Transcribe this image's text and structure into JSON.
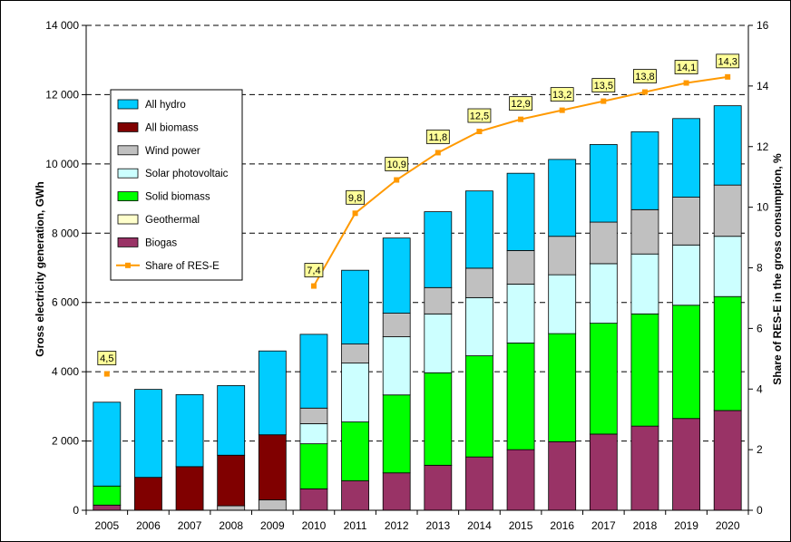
{
  "chart_data": {
    "type": "bar",
    "stacked": true,
    "categories": [
      "2005",
      "2006",
      "2007",
      "2008",
      "2009",
      "2010",
      "2011",
      "2012",
      "2013",
      "2014",
      "2015",
      "2016",
      "2017",
      "2018",
      "2019",
      "2020"
    ],
    "ylabel": "Gross electricity generation, GWh",
    "y2label": "Share of RES-E in the gross consumption, %",
    "ylim": [
      0,
      14000
    ],
    "y2lim": [
      0,
      16
    ],
    "yticks": [
      0,
      2000,
      4000,
      6000,
      8000,
      10000,
      12000,
      14000
    ],
    "yticklabels": [
      "0",
      "2 000",
      "4 000",
      "6 000",
      "8 000",
      "10 000",
      "12 000",
      "14 000"
    ],
    "y2ticks": [
      0,
      2,
      4,
      6,
      8,
      10,
      12,
      14,
      16
    ],
    "y2ticklabels": [
      "0",
      "2",
      "4",
      "6",
      "8",
      "10",
      "12",
      "14",
      "16"
    ],
    "grid": "dashed horizontal",
    "legend_position": "upper-left",
    "series": [
      {
        "name": "Biogas",
        "color": "#993366",
        "values": [
          150,
          0,
          0,
          0,
          0,
          620,
          850,
          1080,
          1300,
          1540,
          1750,
          1980,
          2200,
          2430,
          2650,
          2880
        ]
      },
      {
        "name": "Geothermal",
        "color": "#FFFFCC",
        "values": [
          0,
          0,
          0,
          0,
          0,
          0,
          0,
          0,
          0,
          0,
          0,
          0,
          0,
          0,
          0,
          0
        ]
      },
      {
        "name": "Solid biomass",
        "color": "#00FF00",
        "values": [
          550,
          0,
          0,
          0,
          0,
          1300,
          1700,
          2250,
          2670,
          2920,
          3080,
          3120,
          3200,
          3240,
          3270,
          3290
        ]
      },
      {
        "name": "Solar photovoltaic",
        "color": "#CCFFFF",
        "values": [
          0,
          0,
          0,
          0,
          0,
          580,
          1700,
          1680,
          1700,
          1680,
          1700,
          1700,
          1720,
          1730,
          1740,
          1740
        ]
      },
      {
        "name": "Wind power",
        "color": "#C0C0C0",
        "values": [
          0,
          0,
          0,
          130,
          300,
          450,
          550,
          680,
          760,
          850,
          970,
          1110,
          1200,
          1280,
          1380,
          1480
        ]
      },
      {
        "name": "All biomass",
        "color": "#800000",
        "values": [
          0,
          950,
          1260,
          1460,
          1880,
          0,
          0,
          0,
          0,
          0,
          0,
          0,
          0,
          0,
          0,
          0
        ]
      },
      {
        "name": "All hydro",
        "color": "#00CCFF",
        "values": [
          2420,
          2540,
          2080,
          2010,
          2420,
          2130,
          2130,
          2170,
          2190,
          2230,
          2230,
          2220,
          2240,
          2250,
          2270,
          2290
        ]
      }
    ],
    "line": {
      "name": "Share of RES-E",
      "color": "#FF9900",
      "axis": "right",
      "points": [
        {
          "year": "2005",
          "value": 4.5,
          "label": "4,5"
        },
        {
          "year": "2010",
          "value": 7.4,
          "label": "7,4"
        },
        {
          "year": "2011",
          "value": 9.8,
          "label": "9,8"
        },
        {
          "year": "2012",
          "value": 10.9,
          "label": "10,9"
        },
        {
          "year": "2013",
          "value": 11.8,
          "label": "11,8"
        },
        {
          "year": "2014",
          "value": 12.5,
          "label": "12,5"
        },
        {
          "year": "2015",
          "value": 12.9,
          "label": "12,9"
        },
        {
          "year": "2016",
          "value": 13.2,
          "label": "13,2"
        },
        {
          "year": "2017",
          "value": 13.5,
          "label": "13,5"
        },
        {
          "year": "2018",
          "value": 13.8,
          "label": "13,8"
        },
        {
          "year": "2019",
          "value": 14.1,
          "label": "14,1"
        },
        {
          "year": "2020",
          "value": 14.3,
          "label": "14,3"
        }
      ]
    },
    "legend_entries": [
      "All hydro",
      "All biomass",
      "Wind power",
      "Solar photovoltaic",
      "Solid biomass",
      "Geothermal",
      "Biogas",
      "Share of RES-E"
    ]
  }
}
